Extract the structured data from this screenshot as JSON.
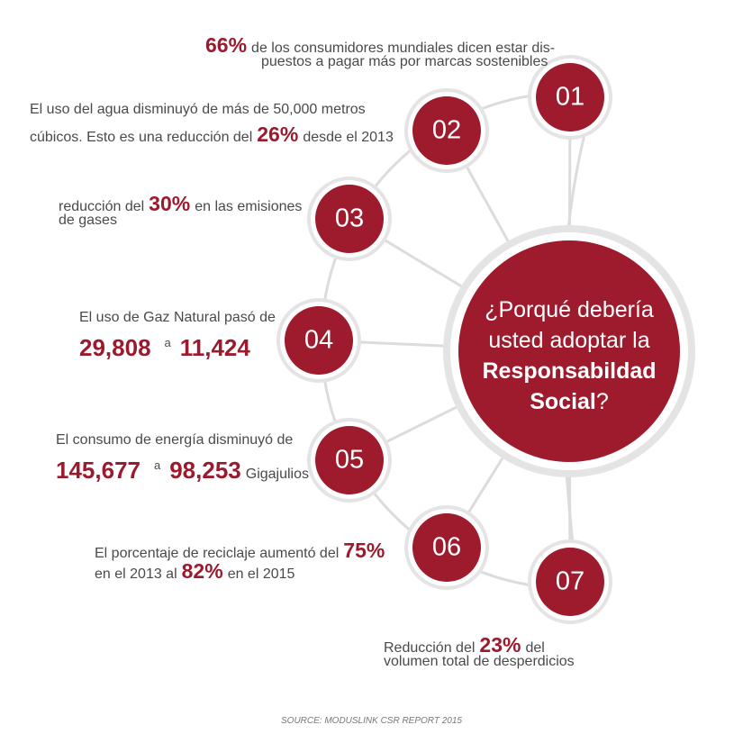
{
  "center": {
    "lines": [
      [
        {
          "text": "¿Porqué debería",
          "style": "normal"
        }
      ],
      [
        {
          "text": "usted  adoptar la",
          "style": "normal"
        }
      ],
      [
        {
          "text": "Responsabildad",
          "style": "bold"
        }
      ],
      [
        {
          "text": "Social",
          "style": "bold"
        },
        {
          "text": "?",
          "style": "normal"
        }
      ]
    ]
  },
  "items": [
    {
      "number": "01",
      "lines": [
        [
          {
            "text": "66%",
            "style": "bold"
          },
          {
            "text": "de los consumidores mundiales dicen estar dis-",
            "style": "normal"
          }
        ],
        [
          {
            "text": "puestos a pagar más por marcas sostenibles",
            "style": "normal"
          }
        ]
      ]
    },
    {
      "number": "02",
      "lines": [
        [
          {
            "text": "El uso del agua disminuyó de más de 50,000 metros",
            "style": "normal"
          }
        ],
        [
          {
            "text": "cúbicos. Esto es una reducción del",
            "style": "normal"
          },
          {
            "text": "26%",
            "style": "bold"
          },
          {
            "text": "desde el 2013",
            "style": "normal"
          }
        ]
      ]
    },
    {
      "number": "03",
      "lines": [
        [
          {
            "text": "reducción del",
            "style": "normal"
          },
          {
            "text": "30%",
            "style": "bold"
          },
          {
            "text": "en las emisiones",
            "style": "normal"
          }
        ],
        [
          {
            "text": "de gases",
            "style": "normal"
          }
        ]
      ]
    },
    {
      "number": "04",
      "lines": [
        [
          {
            "text": "El uso de Gaz Natural pasó de",
            "style": "normal"
          }
        ],
        [
          {
            "text": "29,808",
            "style": "big"
          },
          {
            "text": "a",
            "style": "small"
          },
          {
            "text": "11,424",
            "style": "big"
          }
        ]
      ]
    },
    {
      "number": "05",
      "lines": [
        [
          {
            "text": "El consumo de energía disminuyó de",
            "style": "normal"
          }
        ],
        [
          {
            "text": "145,677",
            "style": "big"
          },
          {
            "text": "a",
            "style": "small"
          },
          {
            "text": "98,253",
            "style": "big"
          },
          {
            "text": "Gigajulios",
            "style": "normal"
          }
        ]
      ]
    },
    {
      "number": "06",
      "lines": [
        [
          {
            "text": "El porcentaje de reciclaje aumentó del",
            "style": "normal"
          },
          {
            "text": "75%",
            "style": "bold"
          }
        ],
        [
          {
            "text": "en el 2013 al",
            "style": "normal"
          },
          {
            "text": "82%",
            "style": "bold"
          },
          {
            "text": "en el 2015",
            "style": "normal"
          }
        ]
      ]
    },
    {
      "number": "07",
      "lines": [
        [
          {
            "text": "Reducción del",
            "style": "normal"
          },
          {
            "text": "23%",
            "style": "bold"
          },
          {
            "text": "del",
            "style": "normal"
          }
        ],
        [
          {
            "text": "volumen total de desperdicios",
            "style": "normal"
          }
        ]
      ]
    }
  ],
  "source": "SOURCE: MODUSLINK CSR REPORT 2015"
}
